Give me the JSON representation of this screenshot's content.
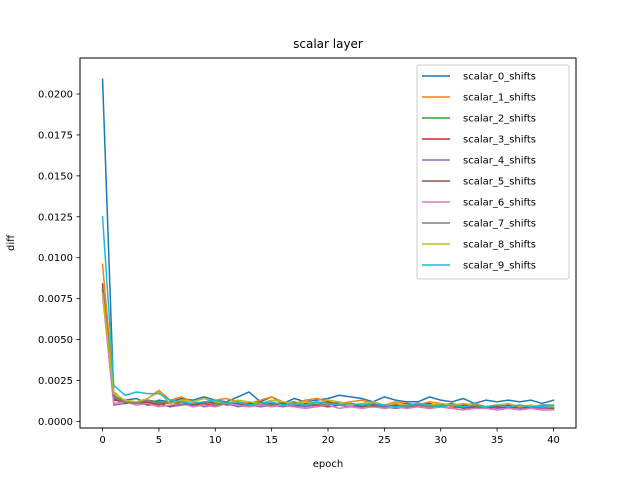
{
  "chart_data": {
    "type": "line",
    "title": "scalar layer",
    "xlabel": "epoch",
    "ylabel": "diff",
    "xlim": [
      -2,
      42
    ],
    "ylim": [
      -0.0004,
      0.0222
    ],
    "xticks": [
      0,
      5,
      10,
      15,
      20,
      25,
      30,
      35,
      40
    ],
    "yticks": [
      0.0,
      0.0025,
      0.005,
      0.0075,
      0.01,
      0.0125,
      0.015,
      0.0175,
      0.02
    ],
    "ytick_labels": [
      "0.0000",
      "0.0025",
      "0.0050",
      "0.0075",
      "0.0100",
      "0.0125",
      "0.0150",
      "0.0175",
      "0.0200"
    ],
    "grid": false,
    "legend_position": "top-right",
    "x": [
      0,
      1,
      2,
      3,
      4,
      5,
      6,
      7,
      8,
      9,
      10,
      11,
      12,
      13,
      14,
      15,
      16,
      17,
      18,
      19,
      20,
      21,
      22,
      23,
      24,
      25,
      26,
      27,
      28,
      29,
      30,
      31,
      32,
      33,
      34,
      35,
      36,
      37,
      38,
      39,
      40
    ],
    "series": [
      {
        "name": "scalar_0_shifts",
        "color": "#1f77b4",
        "values": [
          0.0209,
          0.0015,
          0.0013,
          0.0014,
          0.0011,
          0.0013,
          0.0012,
          0.0014,
          0.0013,
          0.0015,
          0.0013,
          0.0012,
          0.0015,
          0.0018,
          0.0012,
          0.0015,
          0.0011,
          0.0014,
          0.0012,
          0.0013,
          0.0014,
          0.0016,
          0.0015,
          0.0014,
          0.0012,
          0.0015,
          0.0013,
          0.0012,
          0.0012,
          0.0015,
          0.0013,
          0.0012,
          0.0014,
          0.0011,
          0.0013,
          0.0012,
          0.0013,
          0.0012,
          0.0013,
          0.0011,
          0.0013
        ]
      },
      {
        "name": "scalar_1_shifts",
        "color": "#ff7f0e",
        "values": [
          0.0096,
          0.0018,
          0.0012,
          0.0011,
          0.0014,
          0.0019,
          0.0013,
          0.0015,
          0.0012,
          0.0011,
          0.0013,
          0.0014,
          0.0012,
          0.0011,
          0.0013,
          0.0015,
          0.0012,
          0.0011,
          0.0013,
          0.0014,
          0.0012,
          0.0011,
          0.0012,
          0.0013,
          0.0011,
          0.001,
          0.0012,
          0.0011,
          0.001,
          0.0012,
          0.0011,
          0.0009,
          0.001,
          0.0011,
          0.0009,
          0.001,
          0.0009,
          0.001,
          0.0009,
          0.0008,
          0.0009
        ]
      },
      {
        "name": "scalar_2_shifts",
        "color": "#2ca02c",
        "values": [
          0.0082,
          0.0016,
          0.0011,
          0.0012,
          0.0013,
          0.0012,
          0.0011,
          0.0013,
          0.001,
          0.0012,
          0.0011,
          0.0012,
          0.001,
          0.0011,
          0.0012,
          0.001,
          0.0011,
          0.0012,
          0.001,
          0.0011,
          0.0012,
          0.001,
          0.0011,
          0.001,
          0.0011,
          0.0009,
          0.001,
          0.0011,
          0.001,
          0.0009,
          0.001,
          0.0011,
          0.0009,
          0.001,
          0.0009,
          0.001,
          0.0009,
          0.001,
          0.0009,
          0.001,
          0.001
        ]
      },
      {
        "name": "scalar_3_shifts",
        "color": "#d62728",
        "values": [
          0.008,
          0.0013,
          0.0012,
          0.0011,
          0.0012,
          0.001,
          0.0012,
          0.0011,
          0.001,
          0.0011,
          0.0009,
          0.0011,
          0.001,
          0.0011,
          0.0009,
          0.001,
          0.0011,
          0.0009,
          0.001,
          0.0011,
          0.0012,
          0.001,
          0.0009,
          0.001,
          0.0011,
          0.0009,
          0.001,
          0.0008,
          0.001,
          0.0011,
          0.0009,
          0.0008,
          0.001,
          0.0009,
          0.0008,
          0.0009,
          0.001,
          0.0008,
          0.0009,
          0.0008,
          0.0009
        ]
      },
      {
        "name": "scalar_4_shifts",
        "color": "#9467bd",
        "values": [
          0.0079,
          0.001,
          0.0011,
          0.0012,
          0.001,
          0.0011,
          0.0009,
          0.001,
          0.0011,
          0.0009,
          0.001,
          0.0011,
          0.0009,
          0.001,
          0.0009,
          0.001,
          0.0009,
          0.001,
          0.0009,
          0.001,
          0.0009,
          0.001,
          0.0009,
          0.0009,
          0.001,
          0.0009,
          0.0008,
          0.0009,
          0.001,
          0.0008,
          0.0009,
          0.0008,
          0.0009,
          0.0008,
          0.0009,
          0.0008,
          0.0009,
          0.0008,
          0.0009,
          0.0008,
          0.0008
        ]
      },
      {
        "name": "scalar_5_shifts",
        "color": "#8c564b",
        "values": [
          0.0084,
          0.0014,
          0.0011,
          0.0012,
          0.001,
          0.0011,
          0.0009,
          0.0012,
          0.001,
          0.0011,
          0.0012,
          0.001,
          0.0011,
          0.0009,
          0.001,
          0.0011,
          0.001,
          0.0009,
          0.0011,
          0.001,
          0.0009,
          0.001,
          0.0011,
          0.0009,
          0.001,
          0.0008,
          0.0009,
          0.001,
          0.0009,
          0.0008,
          0.0009,
          0.001,
          0.0008,
          0.0009,
          0.0008,
          0.0009,
          0.0008,
          0.0009,
          0.0008,
          0.0009,
          0.0008
        ]
      },
      {
        "name": "scalar_6_shifts",
        "color": "#e377c2",
        "values": [
          0.0077,
          0.0011,
          0.0012,
          0.001,
          0.0011,
          0.0009,
          0.001,
          0.0011,
          0.0009,
          0.001,
          0.0009,
          0.0011,
          0.001,
          0.0009,
          0.001,
          0.0009,
          0.001,
          0.0009,
          0.0008,
          0.0009,
          0.001,
          0.0008,
          0.0009,
          0.0008,
          0.0009,
          0.0008,
          0.0009,
          0.0008,
          0.0009,
          0.0008,
          0.0009,
          0.0008,
          0.0007,
          0.0008,
          0.0008,
          0.0007,
          0.0008,
          0.0007,
          0.0008,
          0.0007,
          0.0007
        ]
      },
      {
        "name": "scalar_7_shifts",
        "color": "#7f7f7f",
        "values": [
          0.0081,
          0.0015,
          0.0012,
          0.0011,
          0.0013,
          0.0011,
          0.0012,
          0.001,
          0.0011,
          0.0012,
          0.001,
          0.0011,
          0.0012,
          0.001,
          0.0011,
          0.001,
          0.0012,
          0.0011,
          0.001,
          0.0011,
          0.001,
          0.0012,
          0.001,
          0.0011,
          0.0009,
          0.001,
          0.0011,
          0.0009,
          0.001,
          0.0009,
          0.001,
          0.0011,
          0.0009,
          0.001,
          0.0009,
          0.001,
          0.0009,
          0.001,
          0.0009,
          0.001,
          0.0009
        ]
      },
      {
        "name": "scalar_8_shifts",
        "color": "#bcbd22",
        "values": [
          0.0078,
          0.0017,
          0.0013,
          0.0012,
          0.0014,
          0.0018,
          0.0011,
          0.0013,
          0.0012,
          0.0014,
          0.0012,
          0.0011,
          0.0013,
          0.0012,
          0.0011,
          0.0013,
          0.0012,
          0.0011,
          0.0012,
          0.0011,
          0.0013,
          0.0012,
          0.001,
          0.0011,
          0.0012,
          0.001,
          0.0011,
          0.001,
          0.0011,
          0.001,
          0.0011,
          0.001,
          0.0011,
          0.001,
          0.0009,
          0.001,
          0.0011,
          0.0009,
          0.001,
          0.0009,
          0.0009
        ]
      },
      {
        "name": "scalar_9_shifts",
        "color": "#17becf",
        "values": [
          0.0125,
          0.0022,
          0.0016,
          0.0018,
          0.0017,
          0.0017,
          0.0013,
          0.0012,
          0.0011,
          0.0012,
          0.0013,
          0.0011,
          0.0012,
          0.001,
          0.0011,
          0.0012,
          0.001,
          0.0011,
          0.001,
          0.0012,
          0.0011,
          0.001,
          0.0011,
          0.001,
          0.0011,
          0.001,
          0.0009,
          0.001,
          0.0011,
          0.001,
          0.0009,
          0.001,
          0.0009,
          0.001,
          0.0009,
          0.001,
          0.0009,
          0.001,
          0.0009,
          0.0009,
          0.001
        ]
      }
    ]
  }
}
